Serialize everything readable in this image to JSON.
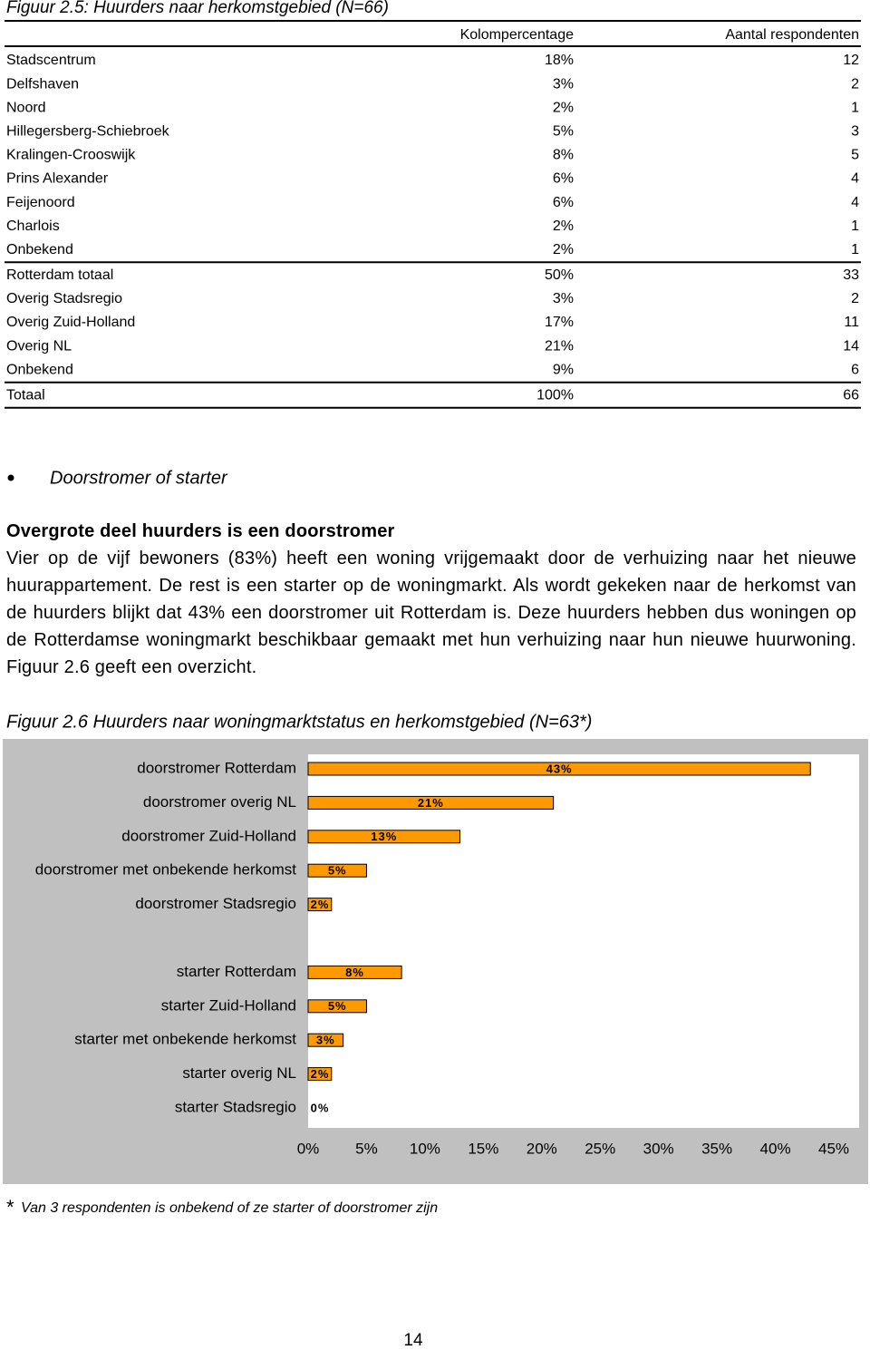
{
  "figure1": {
    "title": "Figuur 2.5: Huurders naar herkomstgebied (N=66)",
    "columns": [
      "Kolompercentage",
      "Aantal respondenten"
    ],
    "groups": [
      [
        [
          "Stadscentrum",
          "18%",
          "12"
        ],
        [
          "Delfshaven",
          "3%",
          "2"
        ],
        [
          "Noord",
          "2%",
          "1"
        ],
        [
          "Hillegersberg-Schiebroek",
          "5%",
          "3"
        ],
        [
          "Kralingen-Crooswijk",
          "8%",
          "5"
        ],
        [
          "Prins Alexander",
          "6%",
          "4"
        ],
        [
          "Feijenoord",
          "6%",
          "4"
        ],
        [
          "Charlois",
          "2%",
          "1"
        ],
        [
          "Onbekend",
          "2%",
          "1"
        ]
      ],
      [
        [
          "Rotterdam totaal",
          "50%",
          "33"
        ],
        [
          "Overig Stadsregio",
          "3%",
          "2"
        ],
        [
          "Overig Zuid-Holland",
          "17%",
          "11"
        ],
        [
          "Overig NL",
          "21%",
          "14"
        ],
        [
          "Onbekend",
          "9%",
          "6"
        ]
      ],
      [
        [
          "Totaal",
          "100%",
          "66"
        ]
      ]
    ]
  },
  "section": {
    "bullet": "Doorstromer of starter",
    "heading": "Overgrote deel huurders is een doorstromer",
    "body": "Vier op de vijf bewoners (83%) heeft een woning vrijgemaakt door de verhuizing naar het nieuwe huurappartement. De rest is een starter op de woningmarkt. Als wordt gekeken naar de herkomst van de huurders blijkt dat 43% een doorstromer uit Rotterdam is. Deze huurders hebben dus woningen op de Rotterdamse woningmarkt beschikbaar gemaakt met hun verhuizing naar hun nieuwe huurwoning. Figuur 2.6 geeft een overzicht."
  },
  "chart_data": {
    "type": "hbar",
    "title": "Figuur 2.6  Huurders naar woningmarktstatus en herkomstgebied  (N=63*)",
    "categories": [
      "doorstromer Rotterdam",
      "doorstromer overig NL",
      "doorstromer Zuid-Holland",
      "doorstromer met onbekende herkomst",
      "doorstromer Stadsregio",
      null,
      "starter Rotterdam",
      "starter Zuid-Holland",
      "starter met onbekende herkomst",
      "starter overig NL",
      "starter Stadsregio"
    ],
    "values": [
      43,
      21,
      13,
      5,
      2,
      null,
      8,
      5,
      3,
      2,
      0
    ],
    "value_labels": [
      "43%",
      "21%",
      "13%",
      "5%",
      "2%",
      null,
      "8%",
      "5%",
      "3%",
      "2%",
      "0%"
    ],
    "color": "#ff9900",
    "xlim": [
      0,
      45
    ],
    "xticks": [
      {
        "value": 0,
        "label": "0%"
      },
      {
        "value": 5,
        "label": "5%"
      },
      {
        "value": 10,
        "label": "10%"
      },
      {
        "value": 15,
        "label": "15%"
      },
      {
        "value": 20,
        "label": "20%"
      },
      {
        "value": 25,
        "label": "25%"
      },
      {
        "value": 30,
        "label": "30%"
      },
      {
        "value": 35,
        "label": "35%"
      },
      {
        "value": 40,
        "label": "40%"
      },
      {
        "value": 45,
        "label": "45%"
      }
    ]
  },
  "footnote": {
    "marker": "*",
    "text": "Van 3 respondenten is onbekend of ze starter of doorstromer zijn"
  },
  "page_number": "14"
}
